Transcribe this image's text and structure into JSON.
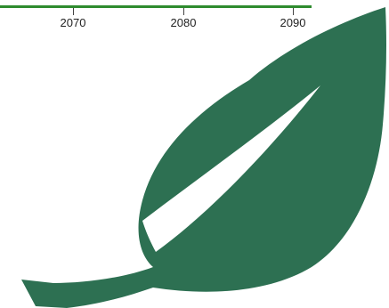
{
  "timeline": {
    "ticks": [
      "2070",
      "2080",
      "2090"
    ]
  },
  "logo": {
    "icon": "leaf-icon",
    "color": "#2d7052"
  },
  "accent_color": "#2e8b2e"
}
